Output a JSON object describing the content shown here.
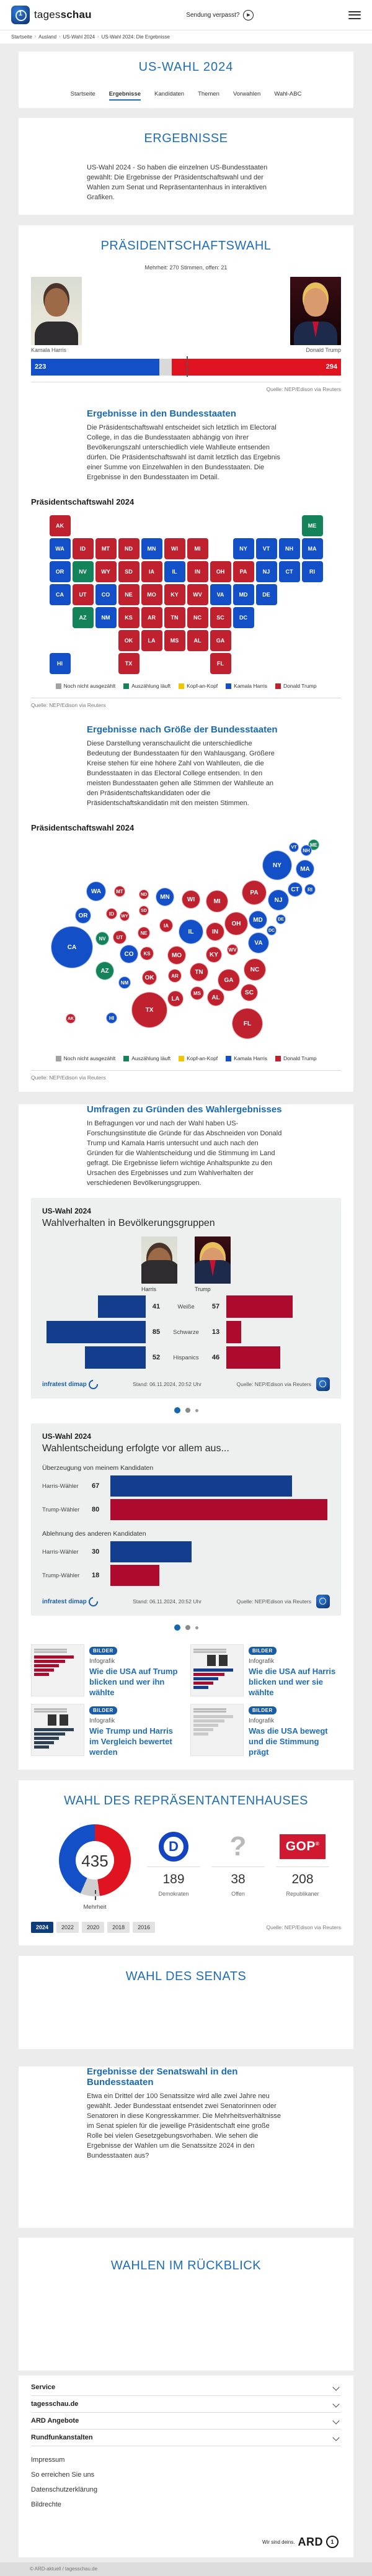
{
  "colors": {
    "harris": "#1350c8",
    "trump": "#c0212e",
    "counting": "#15835a",
    "tie": "#f2c500",
    "none": "#a3a3a3",
    "navy": "#123e8d",
    "crimson": "#ad0a2d",
    "heading": "#1f6db4"
  },
  "header": {
    "brand_regular": "tages",
    "brand_bold": "schau",
    "missed_show": "Sendung verpasst?",
    "breadcrumb": [
      "Startseite",
      "Ausland",
      "US-Wahl 2024",
      "US-Wahl 2024: Die Ergebnisse"
    ],
    "page_title": "US-WAHL 2024",
    "subnav": [
      "Startseite",
      "Ergebnisse",
      "Kandidaten",
      "Themen",
      "Vorwahlen",
      "Wahl-ABC"
    ],
    "subnav_active_index": 1
  },
  "intro": {
    "title": "ERGEBNISSE",
    "text": "US-Wahl 2024 - So haben die einzelnen US-Bundesstaaten gewählt: Die Ergebnisse der Präsidentschaftswahl und der Wahlen zum Senat und Repräsentantenhaus in interaktiven Grafiken."
  },
  "president": {
    "title": "PRÄSIDENTSCHAFTSWAHL",
    "subtitle": "Mehrheit: 270 Stimmen, offen: 21",
    "harris_name": "Kamala Harris",
    "harris_votes": 223,
    "trump_name": "Donald Trump",
    "trump_votes": 294,
    "open": 21,
    "total": 538,
    "majority": 270,
    "source": "Quelle: NEP/Edison via Reuters"
  },
  "states_section": {
    "title": "Ergebnisse in den Bundesstaaten",
    "text": "Die Präsidentschaftswahl entscheidet sich letztlich im Electoral College, in das die Bundesstaaten abhängig von ihrer Bevölkerungszahl unterschiedlich viele Wahlleute entsenden dürfen. Die Präsidentschaftswahl ist damit letztlich das Ergebnis einer Summe von Einzelwahlen in den Bundesstaaten. Die Ergebnisse in den Bundesstaaten im Detail.",
    "map_title": "Präsidentschaftswahl 2024",
    "source": "Quelle: NEP/Edison via Reuters"
  },
  "bubble_section": {
    "title": "Ergebnisse nach Größe der Bundesstaaten",
    "text": "Diese Darstellung veranschaulicht die unterschiedliche Bedeutung der Bundesstaaten für den Wahlausgang. Größere Kreise stehen für eine höhere Zahl von Wahlleuten, die die Bundesstaaten in das Electoral College entsenden. In den meisten Bundesstaaten gehen alle Stimmen der Wahlleute an den Präsidentschaftskandidaten oder die Präsidentschaftskandidatin mit den meisten Stimmen.",
    "map_title": "Präsidentschaftswahl 2024",
    "source": "Quelle: NEP/Edison via Reuters"
  },
  "map_legend": [
    {
      "label": "Noch nicht ausgezählt",
      "color": "#a3a3a3"
    },
    {
      "label": "Auszählung läuft",
      "color": "#15835a"
    },
    {
      "label": "Kopf-an-Kopf",
      "color": "#f2c500"
    },
    {
      "label": "Kamala Harris",
      "color": "#1350c8"
    },
    {
      "label": "Donald Trump",
      "color": "#c0212e"
    }
  ],
  "states": [
    {
      "a": "AK",
      "ev": 3,
      "w": "t",
      "t": [
        0,
        0
      ],
      "b": [
        64,
        290
      ]
    },
    {
      "a": "ME",
      "ev": 4,
      "w": "c",
      "t": [
        0,
        11
      ],
      "b": [
        456,
        10
      ]
    },
    {
      "a": "WA",
      "ev": 12,
      "w": "h",
      "t": [
        1,
        0
      ],
      "b": [
        105,
        85
      ]
    },
    {
      "a": "ID",
      "ev": 4,
      "w": "t",
      "t": [
        1,
        1
      ],
      "b": [
        130,
        121
      ]
    },
    {
      "a": "MT",
      "ev": 4,
      "w": "t",
      "t": [
        1,
        2
      ],
      "b": [
        143,
        85
      ]
    },
    {
      "a": "ND",
      "ev": 3,
      "w": "t",
      "t": [
        1,
        3
      ],
      "b": [
        182,
        90
      ]
    },
    {
      "a": "MN",
      "ev": 10,
      "w": "h",
      "t": [
        1,
        4
      ],
      "b": [
        216,
        94
      ]
    },
    {
      "a": "WI",
      "ev": 10,
      "w": "t",
      "t": [
        1,
        5
      ],
      "b": [
        258,
        98
      ]
    },
    {
      "a": "MI",
      "ev": 15,
      "w": "t",
      "t": [
        1,
        6
      ],
      "b": [
        300,
        101
      ]
    },
    {
      "a": "NY",
      "ev": 28,
      "w": "h",
      "t": [
        1,
        8
      ],
      "b": [
        397,
        43
      ]
    },
    {
      "a": "VT",
      "ev": 3,
      "w": "h",
      "t": [
        1,
        9
      ],
      "b": [
        424,
        14
      ]
    },
    {
      "a": "NH",
      "ev": 4,
      "w": "h",
      "t": [
        1,
        10
      ],
      "b": [
        444,
        19
      ]
    },
    {
      "a": "MA",
      "ev": 11,
      "w": "h",
      "t": [
        1,
        11
      ],
      "b": [
        442,
        49
      ]
    },
    {
      "a": "OR",
      "ev": 8,
      "w": "h",
      "t": [
        2,
        0
      ],
      "b": [
        84,
        124
      ]
    },
    {
      "a": "NV",
      "ev": 6,
      "w": "c",
      "t": [
        2,
        1
      ],
      "b": [
        115,
        161
      ]
    },
    {
      "a": "WY",
      "ev": 3,
      "w": "t",
      "t": [
        2,
        2
      ],
      "b": [
        151,
        125
      ]
    },
    {
      "a": "SD",
      "ev": 3,
      "w": "t",
      "t": [
        2,
        3
      ],
      "b": [
        182,
        116
      ]
    },
    {
      "a": "IA",
      "ev": 6,
      "w": "t",
      "t": [
        2,
        4
      ],
      "b": [
        218,
        140
      ]
    },
    {
      "a": "IL",
      "ev": 19,
      "w": "h",
      "t": [
        2,
        5
      ],
      "b": [
        258,
        150
      ]
    },
    {
      "a": "IN",
      "ev": 11,
      "w": "t",
      "t": [
        2,
        6
      ],
      "b": [
        297,
        150
      ]
    },
    {
      "a": "OH",
      "ev": 17,
      "w": "t",
      "t": [
        2,
        7
      ],
      "b": [
        331,
        137
      ]
    },
    {
      "a": "PA",
      "ev": 19,
      "w": "t",
      "t": [
        2,
        8
      ],
      "b": [
        360,
        87
      ]
    },
    {
      "a": "NJ",
      "ev": 14,
      "w": "h",
      "t": [
        2,
        9
      ],
      "b": [
        399,
        99
      ]
    },
    {
      "a": "CT",
      "ev": 7,
      "w": "h",
      "t": [
        2,
        10
      ],
      "b": [
        426,
        82
      ]
    },
    {
      "a": "RI",
      "ev": 4,
      "w": "h",
      "t": [
        2,
        11
      ],
      "b": [
        450,
        82
      ]
    },
    {
      "a": "CA",
      "ev": 54,
      "w": "h",
      "t": [
        3,
        0
      ],
      "b": [
        66,
        175
      ]
    },
    {
      "a": "UT",
      "ev": 6,
      "w": "t",
      "t": [
        3,
        1
      ],
      "b": [
        143,
        159
      ]
    },
    {
      "a": "CO",
      "ev": 10,
      "w": "h",
      "t": [
        3,
        2
      ],
      "b": [
        158,
        186
      ]
    },
    {
      "a": "NE",
      "ev": 5,
      "w": "t",
      "t": [
        3,
        3
      ],
      "b": [
        182,
        152
      ]
    },
    {
      "a": "MO",
      "ev": 10,
      "w": "t",
      "t": [
        3,
        4
      ],
      "b": [
        235,
        188
      ]
    },
    {
      "a": "KY",
      "ev": 8,
      "w": "t",
      "t": [
        3,
        5
      ],
      "b": [
        295,
        187
      ]
    },
    {
      "a": "WV",
      "ev": 4,
      "w": "t",
      "t": [
        3,
        6
      ],
      "b": [
        325,
        179
      ]
    },
    {
      "a": "VA",
      "ev": 13,
      "w": "h",
      "t": [
        3,
        7
      ],
      "b": [
        367,
        168
      ]
    },
    {
      "a": "MD",
      "ev": 10,
      "w": "h",
      "t": [
        3,
        8
      ],
      "b": [
        366,
        131
      ]
    },
    {
      "a": "DE",
      "ev": 3,
      "w": "h",
      "t": [
        3,
        9
      ],
      "b": [
        403,
        130
      ]
    },
    {
      "a": "AZ",
      "ev": 11,
      "w": "c",
      "t": [
        4,
        1
      ],
      "b": [
        119,
        213
      ]
    },
    {
      "a": "NM",
      "ev": 5,
      "w": "h",
      "t": [
        4,
        2
      ],
      "b": [
        151,
        232
      ]
    },
    {
      "a": "KS",
      "ev": 6,
      "w": "t",
      "t": [
        4,
        3
      ],
      "b": [
        187,
        185
      ]
    },
    {
      "a": "AR",
      "ev": 6,
      "w": "t",
      "t": [
        4,
        4
      ],
      "b": [
        232,
        221
      ]
    },
    {
      "a": "TN",
      "ev": 11,
      "w": "t",
      "t": [
        4,
        5
      ],
      "b": [
        271,
        215
      ]
    },
    {
      "a": "NC",
      "ev": 16,
      "w": "t",
      "t": [
        4,
        6
      ],
      "b": [
        361,
        211
      ]
    },
    {
      "a": "SC",
      "ev": 9,
      "w": "t",
      "t": [
        4,
        7
      ],
      "b": [
        352,
        248
      ]
    },
    {
      "a": "DC",
      "ev": 3,
      "w": "h",
      "t": [
        4,
        8
      ],
      "b": [
        388,
        148
      ]
    },
    {
      "a": "OK",
      "ev": 7,
      "w": "t",
      "t": [
        5,
        3
      ],
      "b": [
        191,
        224
      ]
    },
    {
      "a": "LA",
      "ev": 8,
      "w": "t",
      "t": [
        5,
        4
      ],
      "b": [
        233,
        258
      ]
    },
    {
      "a": "MS",
      "ev": 6,
      "w": "t",
      "t": [
        5,
        5
      ],
      "b": [
        268,
        249
      ]
    },
    {
      "a": "AL",
      "ev": 9,
      "w": "t",
      "t": [
        5,
        6
      ],
      "b": [
        298,
        256
      ]
    },
    {
      "a": "GA",
      "ev": 16,
      "w": "t",
      "t": [
        5,
        7
      ],
      "b": [
        319,
        228
      ]
    },
    {
      "a": "HI",
      "ev": 4,
      "w": "h",
      "t": [
        6,
        0
      ],
      "b": [
        130,
        289
      ]
    },
    {
      "a": "TX",
      "ev": 40,
      "w": "t",
      "t": [
        6,
        3
      ],
      "b": [
        191,
        276
      ]
    },
    {
      "a": "FL",
      "ev": 30,
      "w": "t",
      "t": [
        6,
        7
      ],
      "b": [
        349,
        298
      ]
    }
  ],
  "polls": {
    "title": "Umfragen zu Gründen des Wahlergebnisses",
    "text": "In Befragungen vor und nach der Wahl haben US-Forschungsinstitute die Gründe für das Abschneiden von Donald Trump und Kamala Harris untersucht und auch nach den Gründen für die Wahlentscheidung und die Stimmung im Land gefragt. Die Ergebnisse liefern wichtige Anhaltspunkte zu den Ursachen des Ergebnisses und zum Wahlverhalten der verschiedenen Bevölkerungsgruppen.",
    "card1": {
      "kicker": "US-Wahl 2024",
      "title": "Wahlverhalten in Bevölkerungsgruppen",
      "harris_label": "Harris",
      "trump_label": "Trump",
      "rows": [
        {
          "category": "Weiße",
          "harris": 41,
          "trump": 57
        },
        {
          "category": "Schwarze",
          "harris": 85,
          "trump": 13
        },
        {
          "category": "Hispanics",
          "harris": 52,
          "trump": 46
        }
      ],
      "brand": "infratest dimap",
      "stand": "Stand: 06.11.2024, 20:52 Uhr",
      "source": "Quelle: NEP/Edison via Reuters"
    },
    "card2": {
      "kicker": "US-Wahl 2024",
      "title": "Wahlentscheidung erfolgte vor allem aus...",
      "groups": [
        {
          "title": "Überzeugung von meinem Kandidaten",
          "rows": [
            {
              "label": "Harris-Wähler",
              "value": 67,
              "color": "navy"
            },
            {
              "label": "Trump-Wähler",
              "value": 80,
              "color": "crimson"
            }
          ]
        },
        {
          "title": "Ablehnung des anderen Kandidaten",
          "rows": [
            {
              "label": "Harris-Wähler",
              "value": 30,
              "color": "navy"
            },
            {
              "label": "Trump-Wähler",
              "value": 18,
              "color": "crimson"
            }
          ]
        }
      ],
      "brand": "infratest dimap",
      "stand": "Stand: 06.11.2024, 20:52 Uhr",
      "source": "Quelle: NEP/Edison via Reuters"
    },
    "teasers": [
      {
        "badge": "BILDER",
        "kicker": "Infografik",
        "title": "Wie die USA auf Trump blicken und wer ihn wählte"
      },
      {
        "badge": "BILDER",
        "kicker": "Infografik",
        "title": "Wie die USA auf Harris blicken und wer sie wählte"
      },
      {
        "badge": "BILDER",
        "kicker": "Infografik",
        "title": "Wie Trump und Harris im Vergleich bewertet werden"
      },
      {
        "badge": "BILDER",
        "kicker": "Infografik",
        "title": "Was die USA bewegt und die Stimmung prägt"
      }
    ]
  },
  "house": {
    "title": "WAHL DES REPRÄSENTANTENHAUSES",
    "total": 435,
    "dem": 189,
    "dem_label": "Demokraten",
    "open": 38,
    "open_label": "Offen",
    "rep": 208,
    "rep_label": "Republikaner",
    "majority_label": "Mehrheit",
    "years": [
      "2024",
      "2022",
      "2020",
      "2018",
      "2016"
    ],
    "active_year_index": 0,
    "source": "Quelle: NEP/Edison via Reuters"
  },
  "senate": {
    "title": "WAHL DES SENATS"
  },
  "senate_states": {
    "title": "Ergebnisse der Senatswahl in den Bundesstaaten",
    "text": "Etwa ein Drittel der 100 Senatssitze wird alle zwei Jahre neu gewählt. Jeder Bundesstaat entsendet zwei Senatorinnen oder Senatoren in diese Kongresskammer. Die Mehrheitsverhältnisse im Senat spielen für die jeweilige Präsidentschaft eine große Rolle bei vielen Gesetzgebungsvorhaben. Wie sehen die Ergebnisse der Wahlen um die Senatssitze 2024 in den Bundesstaaten aus?"
  },
  "review": {
    "title": "WAHLEN IM RÜCKBLICK"
  },
  "footer": {
    "accordions": [
      "Service",
      "tagesschau.de",
      "ARD Angebote",
      "Rundfunkanstalten"
    ],
    "links": [
      "Impressum",
      "So erreichen Sie uns",
      "Datenschutzerklärung",
      "Bildrechte"
    ],
    "ard_claim": "Wir sind deins.",
    "ard": "ARD",
    "copyright": "© ARD-aktuell / tagesschau.de"
  },
  "chart_data": [
    {
      "type": "bar",
      "title": "Präsidentschaftswahl Electoral College",
      "categories": [
        "Kamala Harris",
        "offen",
        "Donald Trump"
      ],
      "values": [
        223,
        21,
        294
      ],
      "annotations": [
        "Mehrheit: 270 Stimmen, offen: 21"
      ]
    },
    {
      "type": "heatmap",
      "title": "Präsidentschaftswahl 2024 – Bundesstaaten",
      "note": "Gewinner je Bundesstaat: h=Harris, t=Trump, c=Auszählung läuft; siehe states[]"
    },
    {
      "type": "scatter",
      "title": "Präsidentschaftswahl 2024 – Größe der Bundesstaaten",
      "note": "Kreisfläche proportional zu Wahlleuten (ev) je Bundesstaat; siehe states[]"
    },
    {
      "type": "bar",
      "title": "Wahlverhalten in Bevölkerungsgruppen",
      "categories": [
        "Weiße",
        "Schwarze",
        "Hispanics"
      ],
      "series": [
        {
          "name": "Harris",
          "values": [
            41,
            85,
            52
          ]
        },
        {
          "name": "Trump",
          "values": [
            57,
            13,
            46
          ]
        }
      ]
    },
    {
      "type": "bar",
      "title": "Wahlentscheidung erfolgte vor allem aus...",
      "categories": [
        "Überzeugung: Harris-Wähler",
        "Überzeugung: Trump-Wähler",
        "Ablehnung: Harris-Wähler",
        "Ablehnung: Trump-Wähler"
      ],
      "values": [
        67,
        80,
        30,
        18
      ]
    },
    {
      "type": "pie",
      "title": "Wahl des Repräsentantenhauses",
      "categories": [
        "Demokraten",
        "Offen",
        "Republikaner"
      ],
      "values": [
        189,
        38,
        208
      ],
      "annotations": [
        "435 Sitze",
        "Mehrheit"
      ]
    }
  ]
}
